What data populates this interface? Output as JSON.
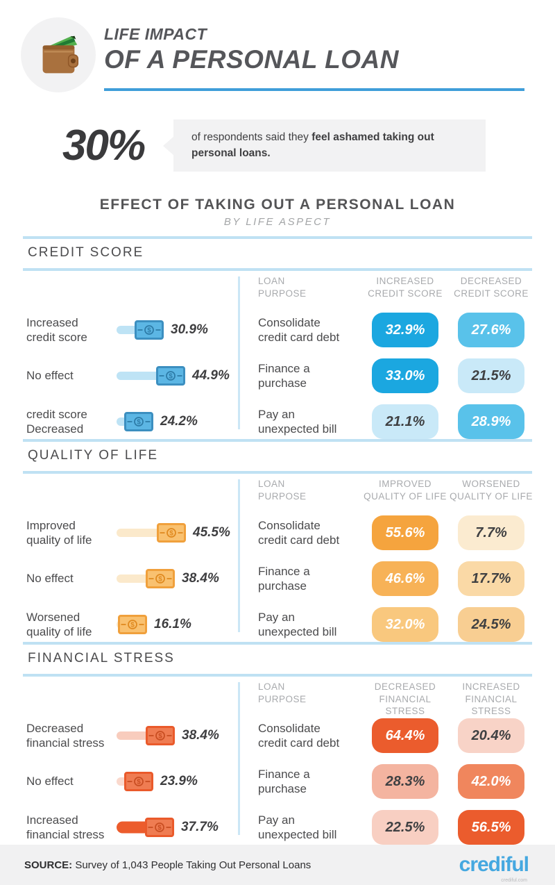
{
  "header": {
    "title_line1": "LIFE IMPACT",
    "title_line2": "OF A PERSONAL LOAN",
    "accent_color": "#3F9ED9"
  },
  "callout": {
    "stat": "30%",
    "lead": "of respondents said they ",
    "emphasis": "feel ashamed taking out personal loans."
  },
  "main": {
    "title": "EFFECT OF TAKING OUT A PERSONAL LOAN",
    "subtitle": "BY LIFE ASPECT"
  },
  "sections": [
    {
      "title": "CREDIT SCORE",
      "bill": {
        "fill": "#5CB6E4",
        "stroke": "#3C8FC0",
        "glyph": "#2E7CA8"
      },
      "bars": [
        {
          "label": "Increased\ncredit score",
          "value": 30.9,
          "display": "30.9%",
          "track": "#BEE3F5"
        },
        {
          "label": "No effect",
          "value": 44.9,
          "display": "44.9%",
          "track": "#BEE3F5"
        },
        {
          "label": "credit score\nDecreased",
          "value": 24.2,
          "display": "24.2%",
          "track": "#BEE3F5"
        }
      ],
      "table": {
        "headers": [
          "LOAN\nPURPOSE",
          "INCREASED\nCREDIT SCORE",
          "DECREASED\nCREDIT SCORE"
        ],
        "rows": [
          {
            "label": "Consolidate\ncredit card debt",
            "cells": [
              {
                "value": "32.9%",
                "bg": "#1BA7E0",
                "fg": "#FFFFFF"
              },
              {
                "value": "27.6%",
                "bg": "#59C2EA",
                "fg": "#FFFFFF"
              }
            ]
          },
          {
            "label": "Finance a\npurchase",
            "cells": [
              {
                "value": "33.0%",
                "bg": "#1BA7E0",
                "fg": "#FFFFFF"
              },
              {
                "value": "21.5%",
                "bg": "#C9E9F8",
                "fg": "#3F4042"
              }
            ]
          },
          {
            "label": "Pay an\nunexpected bill",
            "cells": [
              {
                "value": "21.1%",
                "bg": "#C9E9F8",
                "fg": "#3F4042"
              },
              {
                "value": "28.9%",
                "bg": "#59C2EA",
                "fg": "#FFFFFF"
              }
            ]
          }
        ]
      }
    },
    {
      "title": "QUALITY OF LIFE",
      "bill": {
        "fill": "#F9C170",
        "stroke": "#F0A03C",
        "glyph": "#E08A20"
      },
      "bars": [
        {
          "label": "Improved\nquality of life",
          "value": 45.5,
          "display": "45.5%",
          "track": "#FBE9CB"
        },
        {
          "label": "No effect",
          "value": 38.4,
          "display": "38.4%",
          "track": "#FBE9CB"
        },
        {
          "label": "Worsened\nquality of life",
          "value": 16.1,
          "display": "16.1%",
          "track": "#FBE9CB"
        }
      ],
      "table": {
        "headers": [
          "LOAN\nPURPOSE",
          "IMPROVED\nQUALITY OF LIFE",
          "WORSENED\nQUALITY OF LIFE"
        ],
        "rows": [
          {
            "label": "Consolidate\ncredit card debt",
            "cells": [
              {
                "value": "55.6%",
                "bg": "#F5A43E",
                "fg": "#FFFFFF"
              },
              {
                "value": "7.7%",
                "bg": "#FBEBD0",
                "fg": "#3F4042"
              }
            ]
          },
          {
            "label": "Finance a\npurchase",
            "cells": [
              {
                "value": "46.6%",
                "bg": "#F7B257",
                "fg": "#FFFFFF"
              },
              {
                "value": "17.7%",
                "bg": "#FAD9A6",
                "fg": "#3F4042"
              }
            ]
          },
          {
            "label": "Pay an\nunexpected bill",
            "cells": [
              {
                "value": "32.0%",
                "bg": "#F9C87E",
                "fg": "#FFFFFF"
              },
              {
                "value": "24.5%",
                "bg": "#F8CE92",
                "fg": "#3F4042"
              }
            ]
          }
        ]
      }
    },
    {
      "title": "FINANCIAL STRESS",
      "bill": {
        "fill": "#EF7C52",
        "stroke": "#EA5A2B",
        "glyph": "#C94E22"
      },
      "bars": [
        {
          "label": "Decreased\nfinancial stress",
          "value": 38.4,
          "display": "38.4%",
          "track": "#F8CCBD"
        },
        {
          "label": "No effect",
          "value": 23.9,
          "display": "23.9%",
          "track": "#FAD9CD"
        },
        {
          "label": "Increased\nfinancial stress",
          "value": 37.7,
          "display": "37.7%",
          "track": "#EC5C2C",
          "thick": true
        }
      ],
      "table": {
        "headers": [
          "LOAN\nPURPOSE",
          "DECREASED\nFINANCIAL STRESS",
          "INCREASED\nFINANCIAL STRESS"
        ],
        "rows": [
          {
            "label": "Consolidate\ncredit card debt",
            "cells": [
              {
                "value": "64.4%",
                "bg": "#EB5C2D",
                "fg": "#FFFFFF"
              },
              {
                "value": "20.4%",
                "bg": "#F8D3C7",
                "fg": "#3F4042"
              }
            ]
          },
          {
            "label": "Finance a\npurchase",
            "cells": [
              {
                "value": "28.3%",
                "bg": "#F4B4A0",
                "fg": "#3F4042"
              },
              {
                "value": "42.0%",
                "bg": "#F0865D",
                "fg": "#FFFFFF"
              }
            ]
          },
          {
            "label": "Pay an\nunexpected bill",
            "cells": [
              {
                "value": "22.5%",
                "bg": "#F8CFC2",
                "fg": "#3F4042"
              },
              {
                "value": "56.5%",
                "bg": "#EB5C2D",
                "fg": "#FFFFFF"
              }
            ]
          }
        ]
      }
    }
  ],
  "footer": {
    "source_label": "SOURCE:",
    "source_text": " Survey of 1,043 People Taking Out Personal Loans",
    "brand": "crediful",
    "watermark": "crediful.com"
  },
  "chart_data": [
    {
      "type": "bar",
      "title": "Credit Score",
      "categories": [
        "Increased credit score",
        "No effect",
        "credit score Decreased"
      ],
      "values": [
        30.9,
        44.9,
        24.2
      ],
      "unit": "%",
      "table": {
        "columns": [
          "Loan purpose",
          "Increased credit score",
          "Decreased credit score"
        ],
        "rows": [
          [
            "Consolidate credit card debt",
            32.9,
            27.6
          ],
          [
            "Finance a purchase",
            33.0,
            21.5
          ],
          [
            "Pay an unexpected bill",
            21.1,
            28.9
          ]
        ]
      }
    },
    {
      "type": "bar",
      "title": "Quality of Life",
      "categories": [
        "Improved quality of life",
        "No effect",
        "Worsened quality of life"
      ],
      "values": [
        45.5,
        38.4,
        16.1
      ],
      "unit": "%",
      "table": {
        "columns": [
          "Loan purpose",
          "Improved quality of life",
          "Worsened quality of life"
        ],
        "rows": [
          [
            "Consolidate credit card debt",
            55.6,
            7.7
          ],
          [
            "Finance a purchase",
            46.6,
            17.7
          ],
          [
            "Pay an unexpected bill",
            32.0,
            24.5
          ]
        ]
      }
    },
    {
      "type": "bar",
      "title": "Financial Stress",
      "categories": [
        "Decreased financial stress",
        "No effect",
        "Increased financial stress"
      ],
      "values": [
        38.4,
        23.9,
        37.7
      ],
      "unit": "%",
      "table": {
        "columns": [
          "Loan purpose",
          "Decreased financial stress",
          "Increased financial stress"
        ],
        "rows": [
          [
            "Consolidate credit card debt",
            64.4,
            20.4
          ],
          [
            "Finance a purchase",
            28.3,
            42.0
          ],
          [
            "Pay an unexpected bill",
            22.5,
            56.5
          ]
        ]
      }
    }
  ]
}
